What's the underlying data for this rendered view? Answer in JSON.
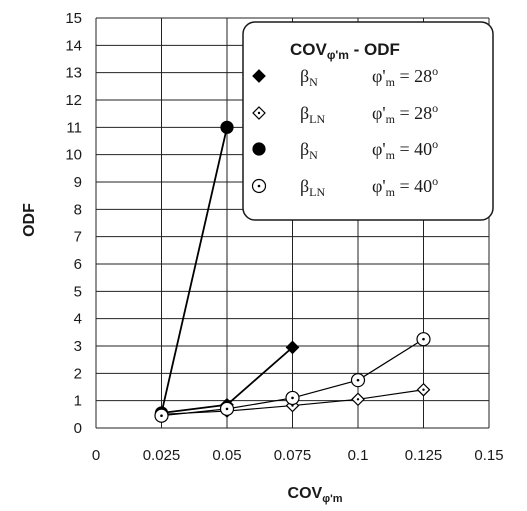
{
  "chart_data": {
    "type": "line",
    "title": "",
    "xlabel": "COV",
    "xlabel_sub": "φ'm",
    "ylabel": "ODF",
    "xlim": [
      0,
      0.15
    ],
    "ylim": [
      0,
      15
    ],
    "x_ticks": [
      0,
      0.025,
      0.05,
      0.075,
      0.1,
      0.125,
      0.15
    ],
    "x_tick_labels": [
      "0",
      "0.025",
      "0.05",
      "0.075",
      "0.1",
      "0.125",
      "0.15"
    ],
    "y_ticks": [
      0,
      1,
      2,
      3,
      4,
      5,
      6,
      7,
      8,
      9,
      10,
      11,
      12,
      13,
      14,
      15
    ],
    "y_tick_labels": [
      "0",
      "1",
      "2",
      "3",
      "4",
      "5",
      "6",
      "7",
      "8",
      "9",
      "10",
      "11",
      "12",
      "13",
      "14",
      "15"
    ],
    "grid": true,
    "legend": {
      "placement": "top-right",
      "title_main": "COV",
      "title_sub": "φ'm",
      "title_rest": " - ODF",
      "entries": [
        {
          "beta": "β",
          "beta_sub": "N",
          "phi": "φ'",
          "phi_sub": "m",
          "value": " = 28",
          "deg": "o"
        },
        {
          "beta": "β",
          "beta_sub": "LN",
          "phi": "φ'",
          "phi_sub": "m",
          "value": " = 28",
          "deg": "o"
        },
        {
          "beta": "β",
          "beta_sub": "N",
          "phi": "φ'",
          "phi_sub": "m",
          "value": " = 40",
          "deg": "o"
        },
        {
          "beta": "β",
          "beta_sub": "LN",
          "phi": "φ'",
          "phi_sub": "m",
          "value": " = 40",
          "deg": "o"
        }
      ]
    },
    "series": [
      {
        "marker": "filled-diamond",
        "x": [
          0.025,
          0.05,
          0.075
        ],
        "y": [
          0.55,
          0.85,
          2.95
        ]
      },
      {
        "marker": "open-diamond",
        "x": [
          0.025,
          0.05,
          0.075,
          0.1,
          0.125
        ],
        "y": [
          0.5,
          0.62,
          0.82,
          1.05,
          1.4
        ]
      },
      {
        "marker": "filled-circle",
        "x": [
          0.025,
          0.05
        ],
        "y": [
          0.55,
          11.0
        ]
      },
      {
        "marker": "open-circle",
        "x": [
          0.025,
          0.05,
          0.075,
          0.1,
          0.125
        ],
        "y": [
          0.45,
          0.7,
          1.1,
          1.75,
          3.25
        ]
      }
    ]
  }
}
